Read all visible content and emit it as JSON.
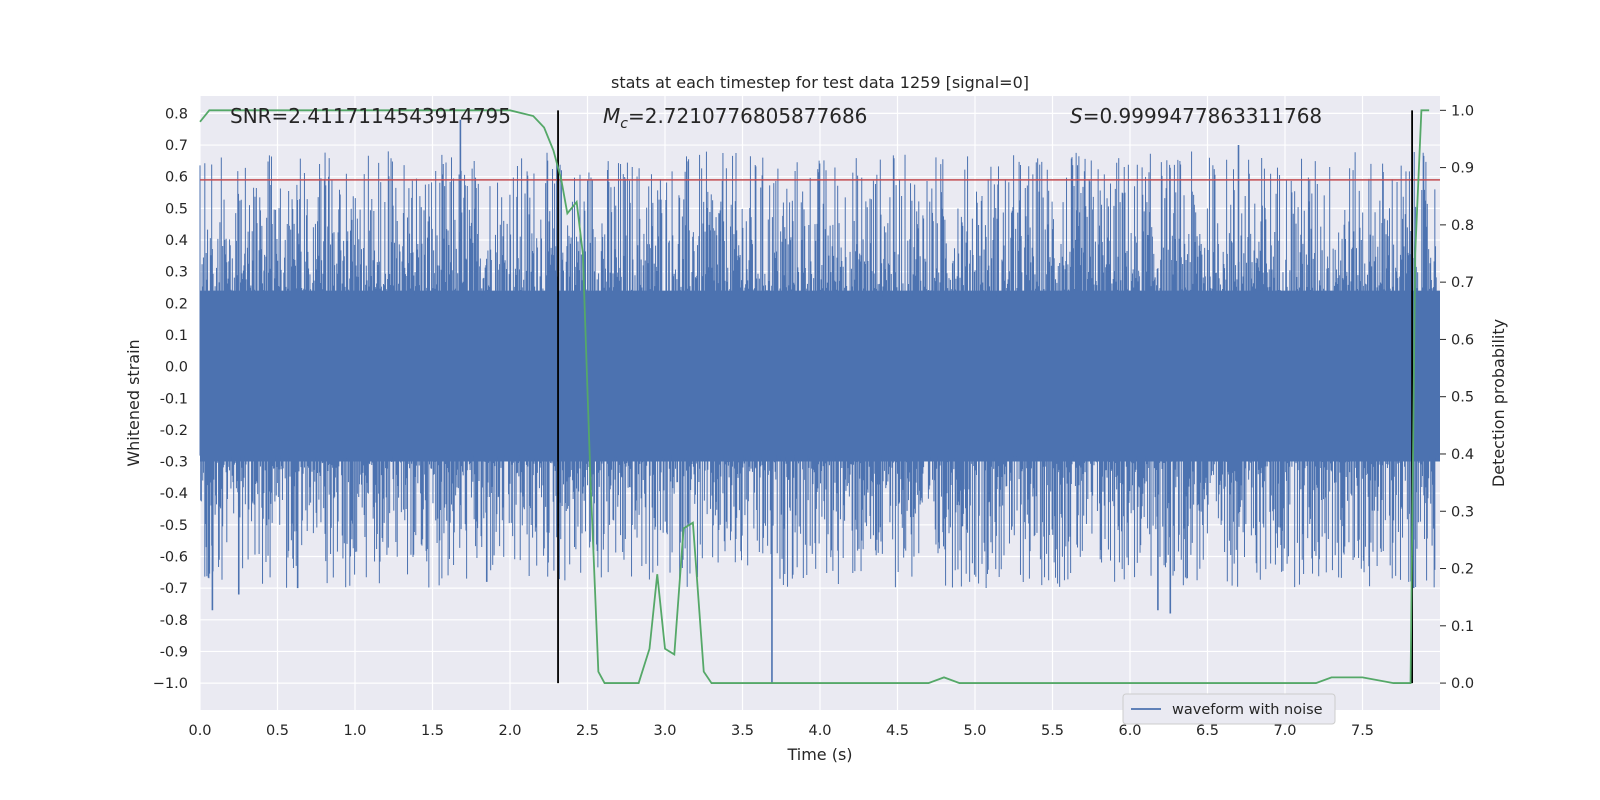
{
  "chart_data": {
    "type": "line",
    "title": "stats at each timestep for test data 1259 [signal=0]",
    "xlabel": "Time (s)",
    "ylabel": "Whitened strain",
    "y2label": "Detection probability",
    "xlim": [
      0.0,
      8.0
    ],
    "ylim": [
      -1.085,
      0.855
    ],
    "y2lim": [
      -0.047,
      1.025
    ],
    "x_ticks": [
      0.0,
      0.5,
      1.0,
      1.5,
      2.0,
      2.5,
      3.0,
      3.5,
      4.0,
      4.5,
      5.0,
      5.5,
      6.0,
      6.5,
      7.0,
      7.5
    ],
    "x_tick_labels": [
      "0.0",
      "0.5",
      "1.0",
      "1.5",
      "2.0",
      "2.5",
      "3.0",
      "3.5",
      "4.0",
      "4.5",
      "5.0",
      "5.5",
      "6.0",
      "6.5",
      "7.0",
      "7.5"
    ],
    "y_ticks": [
      0.8,
      0.7,
      0.6,
      0.5,
      0.4,
      0.3,
      0.2,
      0.1,
      0.0,
      -0.1,
      -0.2,
      -0.3,
      -0.4,
      -0.5,
      -0.6,
      -0.7,
      -0.8,
      -0.9,
      -1.0
    ],
    "y_tick_labels": [
      "0.8",
      "0.7",
      "0.6",
      "0.5",
      "0.4",
      "0.3",
      "0.2",
      "0.1",
      "0.0",
      "-0.1",
      "-0.2",
      "-0.3",
      "-0.4",
      "-0.5",
      "-0.6",
      "-0.7",
      "-0.8",
      "-0.9",
      "−1.0"
    ],
    "y2_ticks": [
      1.0,
      0.9,
      0.8,
      0.7,
      0.6,
      0.5,
      0.4,
      0.3,
      0.2,
      0.1,
      0.0
    ],
    "y2_tick_labels": [
      "1.0",
      "0.9",
      "0.8",
      "0.7",
      "0.6",
      "0.5",
      "0.4",
      "0.3",
      "0.2",
      "0.1",
      "0.0"
    ],
    "annotations": {
      "snr": "SNR=2.4117114543914795",
      "mc_prefix": "M",
      "mc_sub": "c",
      "mc_value": "=2.7210776805877686",
      "s_prefix": "S",
      "s_value": "=0.9999477863311768"
    },
    "threshold": {
      "y": 0.59,
      "color": "#c44e52"
    },
    "vertical_markers": [
      {
        "x": 2.31
      },
      {
        "x": 7.82
      }
    ],
    "legend": {
      "position": "lower-right",
      "entries": [
        "waveform with noise"
      ]
    },
    "grid": true,
    "series": [
      {
        "name": "waveform with noise",
        "axis": "left",
        "color": "#4c72b0",
        "note_values": "dense noise waveform ~±0.4, peaks ±0.8",
        "spikes": [
          {
            "x": 1.68,
            "y": 0.78
          },
          {
            "x": 0.08,
            "y": -0.77
          },
          {
            "x": 0.25,
            "y": -0.72
          },
          {
            "x": 0.63,
            "y": -0.7
          },
          {
            "x": 1.85,
            "y": -0.68
          },
          {
            "x": 3.69,
            "y": -1.0
          },
          {
            "x": 6.18,
            "y": -0.77
          },
          {
            "x": 6.26,
            "y": -0.78
          },
          {
            "x": 6.7,
            "y": 0.7
          },
          {
            "x": 7.83,
            "y": -0.7
          }
        ]
      },
      {
        "color": "#55a868",
        "axis": "right",
        "x": [
          0.0,
          0.06,
          0.5,
          1.0,
          1.5,
          2.0,
          2.15,
          2.22,
          2.28,
          2.33,
          2.37,
          2.43,
          2.47,
          2.52,
          2.57,
          2.61,
          2.65,
          2.75,
          2.83,
          2.9,
          2.95,
          3.0,
          3.06,
          3.12,
          3.18,
          3.25,
          3.3,
          3.36,
          3.5,
          4.0,
          4.5,
          4.7,
          4.8,
          4.9,
          5.2,
          6.0,
          7.0,
          7.2,
          7.3,
          7.5,
          7.7,
          7.81,
          7.84,
          7.88,
          7.93
        ],
        "y": [
          0.98,
          1.0,
          1.0,
          1.0,
          1.0,
          1.0,
          0.99,
          0.97,
          0.93,
          0.88,
          0.82,
          0.84,
          0.75,
          0.35,
          0.02,
          0.0,
          0.0,
          0.0,
          0.0,
          0.06,
          0.19,
          0.06,
          0.05,
          0.27,
          0.28,
          0.02,
          0.0,
          0.0,
          0.0,
          0.0,
          0.0,
          0.0,
          0.01,
          0.0,
          0.0,
          0.0,
          0.0,
          0.0,
          0.01,
          0.01,
          0.0,
          0.0,
          0.75,
          1.0,
          1.0
        ]
      }
    ]
  }
}
